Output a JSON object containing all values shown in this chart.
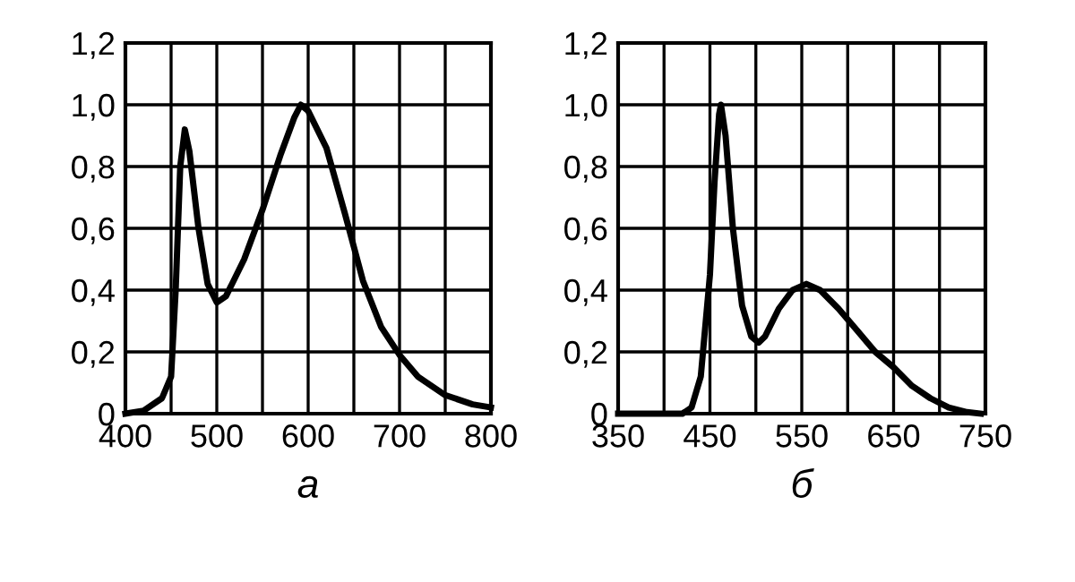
{
  "chart_data": [
    {
      "type": "line",
      "xlabel": "а",
      "x": [
        400,
        420,
        440,
        450,
        455,
        460,
        465,
        470,
        480,
        490,
        500,
        510,
        530,
        550,
        570,
        585,
        592,
        600,
        620,
        640,
        660,
        680,
        700,
        720,
        750,
        780,
        800
      ],
      "series": [
        {
          "color": "#000000",
          "values": [
            0,
            0.01,
            0.05,
            0.12,
            0.4,
            0.8,
            0.92,
            0.85,
            0.6,
            0.42,
            0.36,
            0.38,
            0.5,
            0.66,
            0.84,
            0.96,
            1.0,
            0.98,
            0.86,
            0.65,
            0.43,
            0.28,
            0.19,
            0.12,
            0.06,
            0.03,
            0.02
          ]
        }
      ],
      "xlim": [
        400,
        800
      ],
      "xticks": [
        400,
        {
          "value": 450,
          "label": null
        },
        500,
        {
          "value": 550,
          "label": null
        },
        600,
        {
          "value": 650,
          "label": null
        },
        700,
        {
          "value": 750,
          "label": null
        },
        800
      ],
      "ylim": [
        0,
        1.2
      ],
      "yticks": [
        0,
        {
          "value": 0.2,
          "label": "0,2"
        },
        {
          "value": 0.4,
          "label": "0,4"
        },
        {
          "value": 0.6,
          "label": "0,6"
        },
        {
          "value": 0.8,
          "label": "0,8"
        },
        {
          "value": 1.0,
          "label": "1,0"
        },
        {
          "value": 1.2,
          "label": "1,2"
        }
      ],
      "grid": true,
      "marker": "none",
      "line_style": "solid"
    },
    {
      "type": "line",
      "xlabel": "б",
      "x": [
        350,
        420,
        430,
        440,
        450,
        455,
        460,
        462,
        467,
        475,
        485,
        495,
        503,
        510,
        525,
        540,
        555,
        570,
        590,
        610,
        630,
        650,
        670,
        690,
        710,
        730,
        745
      ],
      "series": [
        {
          "color": "#000000",
          "values": [
            0,
            0,
            0.02,
            0.12,
            0.45,
            0.75,
            0.97,
            1.0,
            0.9,
            0.6,
            0.35,
            0.25,
            0.23,
            0.25,
            0.34,
            0.4,
            0.42,
            0.4,
            0.34,
            0.27,
            0.2,
            0.15,
            0.09,
            0.05,
            0.02,
            0.005,
            0
          ]
        }
      ],
      "xlim": [
        350,
        750
      ],
      "xticks": [
        350,
        {
          "value": 400,
          "label": null
        },
        450,
        {
          "value": 500,
          "label": null
        },
        550,
        {
          "value": 600,
          "label": null
        },
        650,
        {
          "value": 700,
          "label": null
        },
        750
      ],
      "ylim": [
        0,
        1.2
      ],
      "yticks": [
        0,
        {
          "value": 0.2,
          "label": "0,2"
        },
        {
          "value": 0.4,
          "label": "0,4"
        },
        {
          "value": 0.6,
          "label": "0,6"
        },
        {
          "value": 0.8,
          "label": "0,8"
        },
        {
          "value": 1.0,
          "label": "1,0"
        },
        {
          "value": 1.2,
          "label": "1,2"
        }
      ],
      "grid": true,
      "marker": "none",
      "line_style": "solid"
    }
  ]
}
